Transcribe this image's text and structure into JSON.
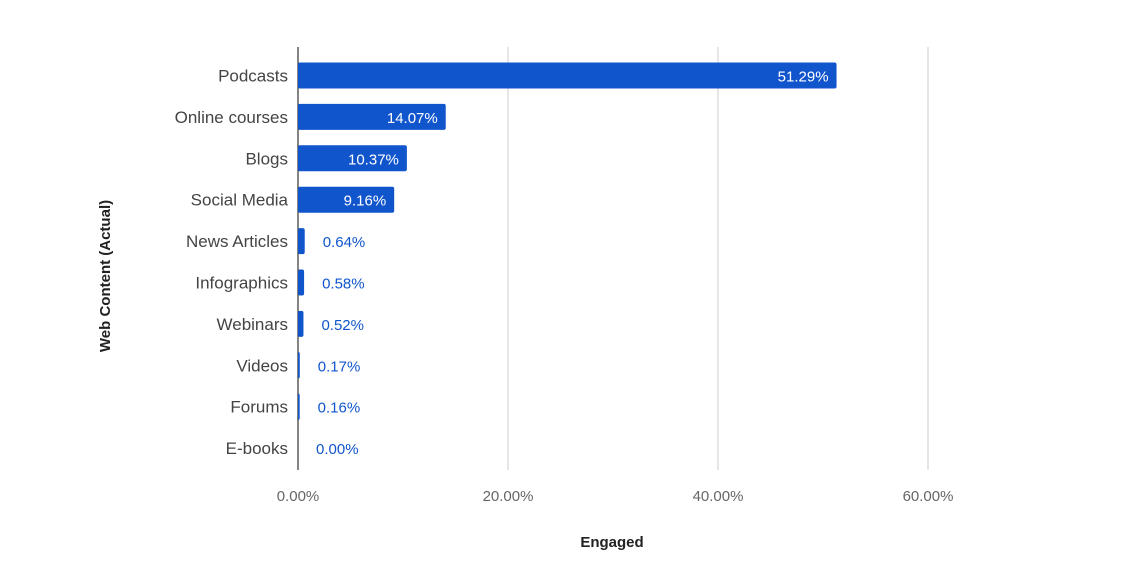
{
  "chart_data": {
    "type": "bar",
    "orientation": "horizontal",
    "categories": [
      "Podcasts",
      "Online courses",
      "Blogs",
      "Social Media",
      "News Articles",
      "Infographics",
      "Webinars",
      "Videos",
      "Forums",
      "E-books"
    ],
    "values": [
      51.29,
      14.07,
      10.37,
      9.16,
      0.64,
      0.58,
      0.52,
      0.17,
      0.16,
      0.0
    ],
    "data_labels": [
      "51.29%",
      "14.07%",
      "10.37%",
      "9.16%",
      "0.64%",
      "0.58%",
      "0.52%",
      "0.17%",
      "0.16%",
      "0.00%"
    ],
    "xlabel": "Engaged",
    "ylabel": "Web Content (Actual)",
    "xlim": [
      0,
      60
    ],
    "x_ticks": [
      0,
      20,
      40,
      60
    ],
    "x_tick_labels": [
      "0.00%",
      "20.00%",
      "40.00%",
      "60.00%"
    ],
    "grid": true,
    "legend": "none",
    "bar_color": "#1155cc",
    "label_inside_color": "#ffffff",
    "label_outside_color": "#1155cc"
  }
}
